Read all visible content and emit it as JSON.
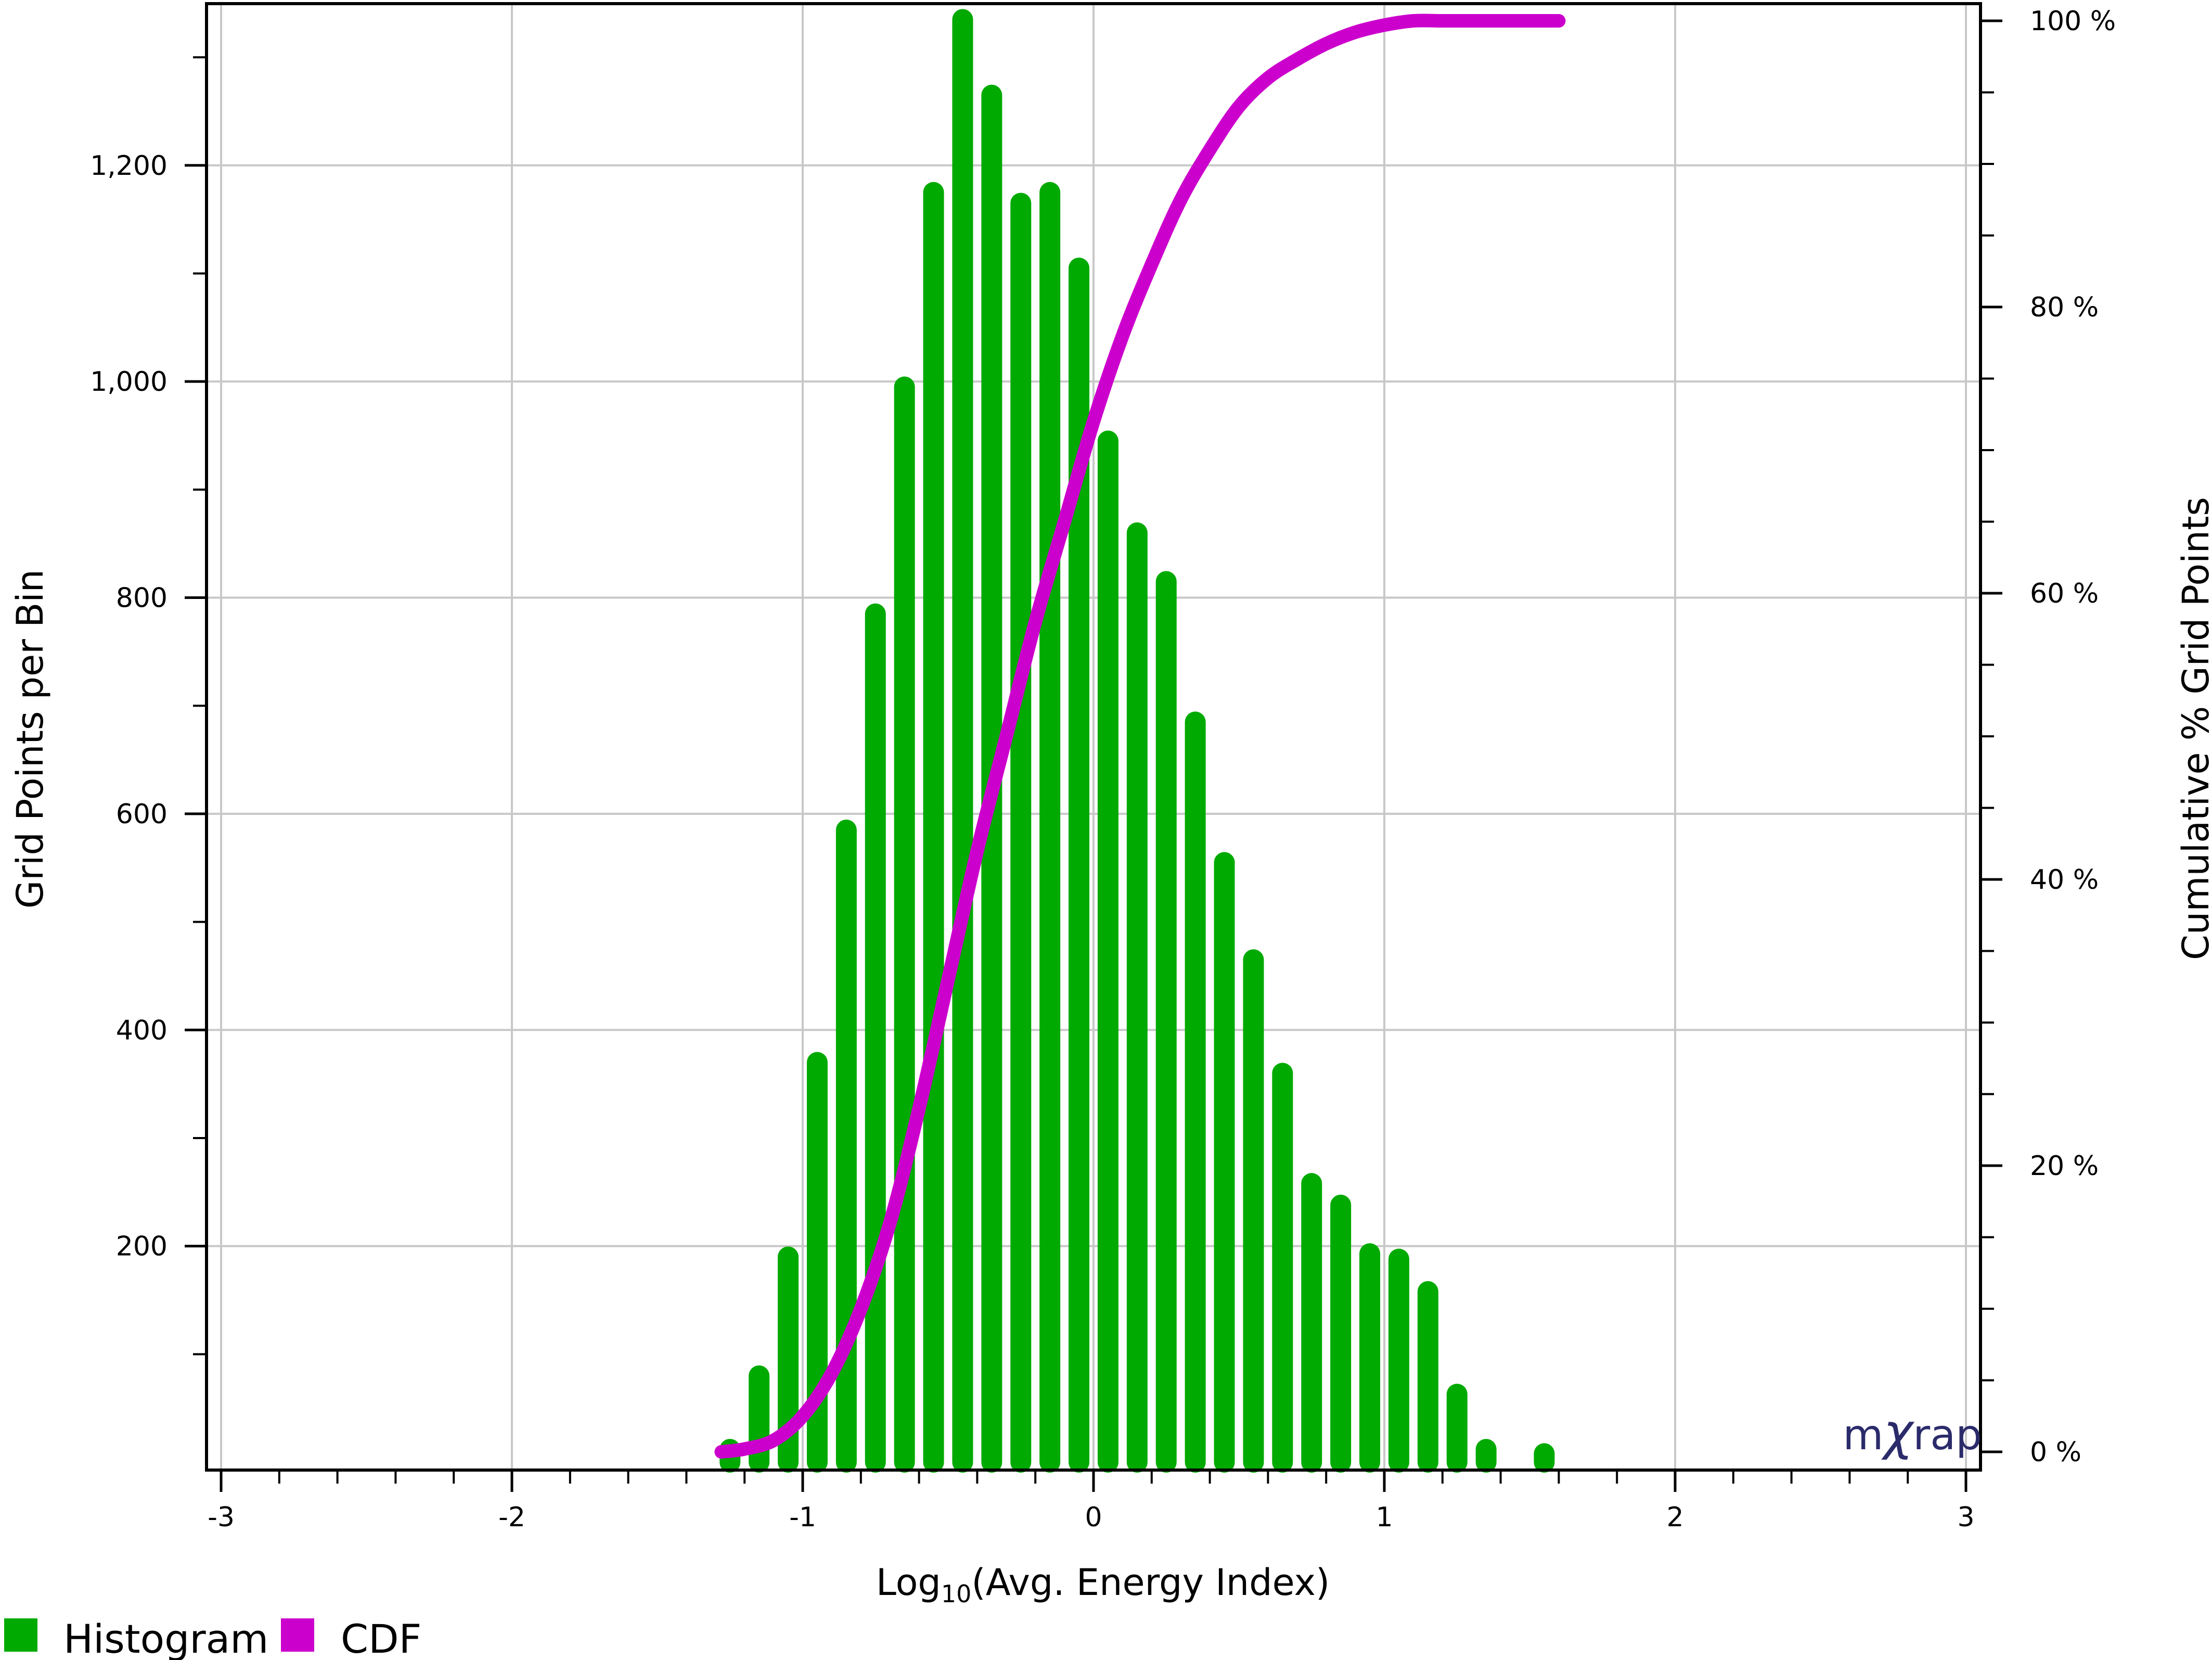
{
  "chart_data": {
    "type": "bar",
    "xlabel_main": "Log",
    "xlabel_sub": "10",
    "xlabel_rest": "(Avg. Energy Index)",
    "ylabel_left": "Grid Points per Bin",
    "ylabel_right": "Cumulative % Grid Points",
    "xlim": [
      -3,
      3
    ],
    "ylim_left": [
      0,
      1340
    ],
    "ylim_right": [
      0,
      100
    ],
    "x_ticks": [
      "-3",
      "-2",
      "-1",
      "0",
      "1",
      "2",
      "3"
    ],
    "y_left_ticks": [
      "200",
      "400",
      "600",
      "800",
      "1,000",
      "1,200"
    ],
    "y_right_ticks": [
      "0 %",
      "20 %",
      "40 %",
      "60 %",
      "80 %",
      "100 %"
    ],
    "grid": true,
    "series": [
      {
        "name": "Histogram",
        "color": "#00aa00",
        "x": [
          -1.25,
          -1.15,
          -1.05,
          -0.95,
          -0.85,
          -0.75,
          -0.65,
          -0.55,
          -0.45,
          -0.35,
          -0.25,
          -0.15,
          -0.05,
          0.05,
          0.15,
          0.25,
          0.35,
          0.45,
          0.55,
          0.65,
          0.75,
          0.85,
          0.95,
          1.05,
          1.15,
          1.25,
          1.35,
          1.55
        ],
        "values": [
          12,
          80,
          190,
          370,
          585,
          785,
          995,
          1175,
          1335,
          1265,
          1165,
          1175,
          1105,
          945,
          860,
          815,
          685,
          555,
          465,
          360,
          258,
          238,
          193,
          188,
          158,
          63,
          12,
          8
        ]
      },
      {
        "name": "CDF",
        "color": "#cc00cc",
        "x": [
          -1.28,
          -1.2,
          -1.1,
          -1.0,
          -0.9,
          -0.8,
          -0.7,
          -0.6,
          -0.5,
          -0.4,
          -0.3,
          -0.2,
          -0.1,
          0.0,
          0.1,
          0.2,
          0.3,
          0.4,
          0.5,
          0.6,
          0.7,
          0.8,
          0.9,
          1.0,
          1.1,
          1.2,
          1.3,
          1.4,
          1.5,
          1.6
        ],
        "values": [
          0,
          0.2,
          0.8,
          2.5,
          5.5,
          10,
          16,
          24,
          33,
          42,
          50,
          58,
          65,
          72,
          78,
          83,
          87.5,
          91,
          94,
          96,
          97.3,
          98.4,
          99.2,
          99.7,
          100,
          100,
          100,
          100,
          100,
          100
        ]
      }
    ]
  },
  "legend": {
    "items": [
      {
        "label": "Histogram",
        "color": "#00aa00"
      },
      {
        "label": "CDF",
        "color": "#cc00cc"
      }
    ]
  },
  "watermark": {
    "m": "m",
    "chi": "χ",
    "rap": "rap",
    "color": "#2b2b6b"
  }
}
